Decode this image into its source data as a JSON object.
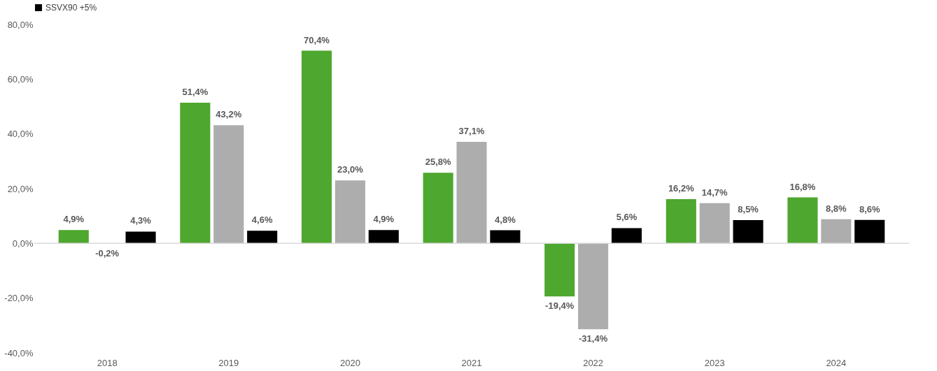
{
  "chart_data": {
    "type": "bar",
    "categories": [
      "2018",
      "2019",
      "2020",
      "2021",
      "2022",
      "2023",
      "2024"
    ],
    "series": [
      {
        "color": "#4ea72e",
        "values": [
          4.9,
          51.4,
          70.4,
          25.8,
          -19.4,
          16.2,
          16.8
        ],
        "value_labels": [
          "4,9%",
          "51,4%",
          "70,4%",
          "25,8%",
          "-19,4%",
          "16,2%",
          "16,8%"
        ]
      },
      {
        "color": "#adadad",
        "values": [
          -0.2,
          43.2,
          23.0,
          37.1,
          -31.4,
          14.7,
          8.8
        ],
        "value_labels": [
          "-0,2%",
          "43,2%",
          "23,0%",
          "37,1%",
          "-31,4%",
          "14,7%",
          "8,8%"
        ]
      },
      {
        "name": "SSVX90 +5%",
        "color": "#000000",
        "values": [
          4.3,
          4.6,
          4.9,
          4.8,
          5.6,
          8.5,
          8.6
        ],
        "value_labels": [
          "4,3%",
          "4,6%",
          "4,9%",
          "4,8%",
          "5,6%",
          "8,5%",
          "8,6%"
        ]
      }
    ],
    "ylim": [
      -40,
      80
    ],
    "yticks": [
      {
        "value": -40,
        "label": "-40,0%"
      },
      {
        "value": -20,
        "label": "-20,0%"
      },
      {
        "value": 0,
        "label": "0,0%"
      },
      {
        "value": 20,
        "label": "20,0%"
      },
      {
        "value": 40,
        "label": "40,0%"
      },
      {
        "value": 60,
        "label": "60,0%"
      },
      {
        "value": 80,
        "label": "80,0%"
      }
    ],
    "ref_lines": [
      {
        "axis": "y",
        "value": 0,
        "color": "#d9d9d9"
      }
    ],
    "grid": false,
    "legend": "top"
  }
}
